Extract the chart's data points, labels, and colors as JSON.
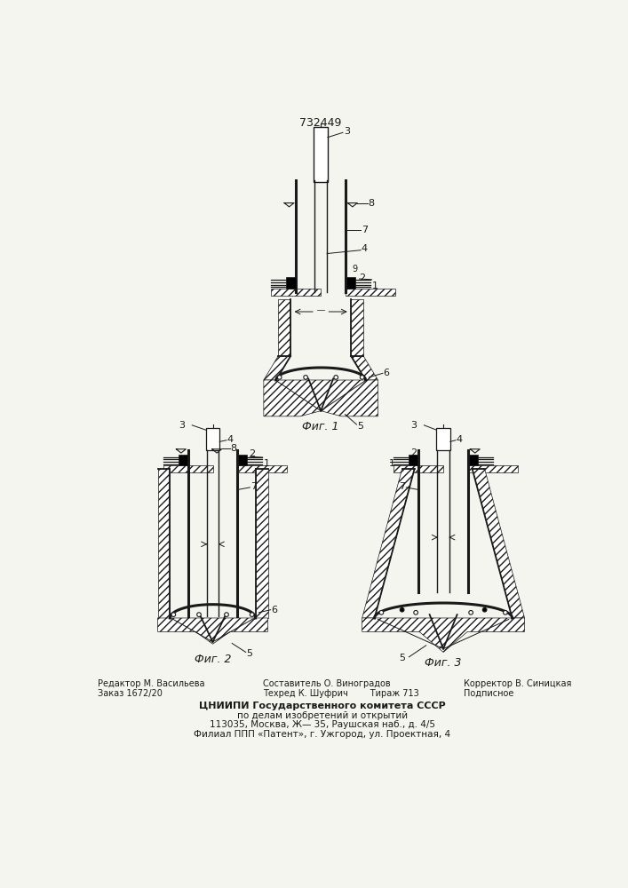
{
  "patent_number": "732449",
  "fig1_caption": "Фиг. 1",
  "fig2_caption": "Фиг. 2",
  "fig3_caption": "Фиг. 3",
  "bg_color": "#f5f5f0",
  "line_color": "#1a1a1a",
  "footer_col1_line1": "Редактор М. Васильева",
  "footer_col1_line2": "Заказ 1672/20",
  "footer_col2_line1": "Составитель О. Виноградов",
  "footer_col2_line2": "Техред К. Шуфрич",
  "footer_col2_line3": "Тираж 713",
  "footer_col3_line1": "Корректор В. Синицкая",
  "footer_col3_line2": "Подписное",
  "footer_main1": "ЦНИИПИ Государственного комитета СССР",
  "footer_main2": "по делам изобретений и открытий",
  "footer_main3": "113035, Москва, Ж— 35, Раушская наб., д. 4/5",
  "footer_main4": "Филиал ППП «Патент», г. Ужгород, ул. Проектная, 4"
}
